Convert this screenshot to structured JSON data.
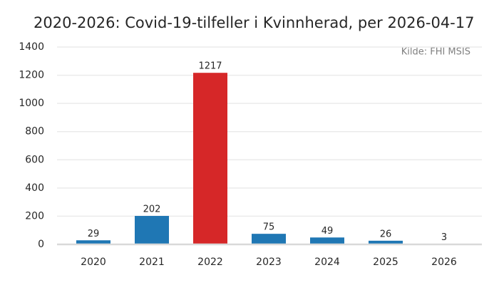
{
  "chart_data": {
    "type": "bar",
    "title": "2020-2026: Covid-19-tilfeller i Kvinnherad, per 2026-04-17",
    "annotation": "Kilde: FHI MSIS",
    "categories": [
      "2020",
      "2021",
      "2022",
      "2023",
      "2024",
      "2025",
      "2026"
    ],
    "values": [
      29,
      202,
      1217,
      75,
      49,
      26,
      3
    ],
    "colors": [
      "#1f77b4",
      "#1f77b4",
      "#d62728",
      "#1f77b4",
      "#1f77b4",
      "#1f77b4",
      "#1f77b4"
    ],
    "ylim": [
      0,
      1400
    ],
    "yticks": [
      0,
      200,
      400,
      600,
      800,
      1000,
      1200,
      1400
    ],
    "grid": true
  }
}
